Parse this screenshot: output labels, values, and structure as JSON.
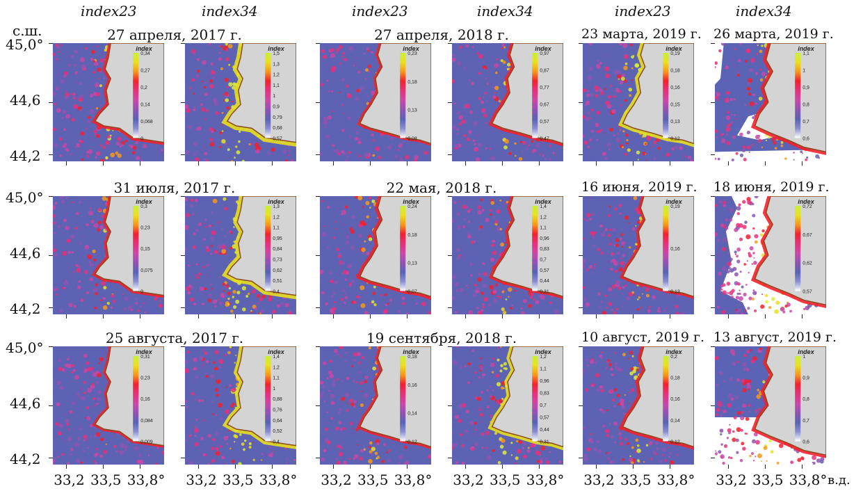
{
  "index_labels": {
    "index23": "index23",
    "index34": "index34"
  },
  "lat_axis": {
    "unit": "с.ш.",
    "ticks": [
      "45,0°",
      "44,6",
      "44,2"
    ]
  },
  "lon_axis": {
    "unit": "в.д.",
    "ticks": [
      "33,2",
      "33,5",
      "33,8°"
    ]
  },
  "rows": [
    {
      "dates": [
        {
          "label": "27 апреля, 2017 г.",
          "span": 2
        },
        {
          "label": "27 апреля, 2018 г.",
          "span": 2
        },
        {
          "label": "23 марта, 2019 г.",
          "span": 1
        },
        {
          "label": "26 марта, 2019 г.",
          "span": 1
        }
      ]
    },
    {
      "dates": [
        {
          "label": "31 июля, 2017 г.",
          "span": 2
        },
        {
          "label": "22 мая, 2018 г.",
          "span": 2
        },
        {
          "label": "16 июня, 2019 г.",
          "span": 1
        },
        {
          "label": "18 июня, 2019 г.",
          "span": 1
        }
      ]
    },
    {
      "dates": [
        {
          "label": "25 августа, 2017 г.",
          "span": 2
        },
        {
          "label": "19 сентября, 2018 г.",
          "span": 2
        },
        {
          "label": "10 август, 2019 г.",
          "span": 1
        },
        {
          "label": "13 август, 2019 г.",
          "span": 1
        }
      ]
    }
  ],
  "colorbar_title": "index",
  "panels": [
    {
      "id": "r1c1",
      "index": "index23",
      "ticks": [
        "0,34",
        "0,27",
        "0,2",
        "0,14",
        "0,068",
        "0"
      ],
      "hot": 0.35,
      "seed": 1,
      "coast": "a"
    },
    {
      "id": "r1c2",
      "index": "index34",
      "ticks": [
        "1,5",
        "1,3",
        "1,2",
        "1,1",
        "1",
        "0,9",
        "0,79",
        "0,68",
        "0,57"
      ],
      "hot": 0.8,
      "seed": 2,
      "coast": "a"
    },
    {
      "id": "r1c3",
      "index": "index23",
      "ticks": [
        "0,23",
        "0,18",
        "0,13",
        "0,08"
      ],
      "hot": 0.25,
      "seed": 3,
      "coast": "b"
    },
    {
      "id": "r1c4",
      "index": "index34",
      "ticks": [
        "0,97",
        "0,87",
        "0,77",
        "0,67",
        "0,57",
        "0,47"
      ],
      "hot": 0.4,
      "seed": 4,
      "coast": "b"
    },
    {
      "id": "r1c5",
      "index": "index23",
      "ticks": [
        "0,19",
        "0,18",
        "0,16",
        "0,15",
        "0,13",
        "0,12"
      ],
      "hot": 0.6,
      "seed": 5,
      "coast": "b"
    },
    {
      "id": "r1c6",
      "index": "index34",
      "ticks": [
        "1,1",
        "1",
        "0,9",
        "0,8",
        "0,7",
        "0,6"
      ],
      "hot": 0.5,
      "seed": 6,
      "coast": "c"
    },
    {
      "id": "r2c1",
      "index": "index23",
      "ticks": [
        "0,3",
        "0,23",
        "0,15",
        "0,075",
        "0"
      ],
      "hot": 0.3,
      "seed": 7,
      "coast": "a"
    },
    {
      "id": "r2c2",
      "index": "index34",
      "ticks": [
        "1,3",
        "1,2",
        "1,1",
        "0,95",
        "0,84",
        "0,73",
        "0,62",
        "0,51",
        "0,4"
      ],
      "hot": 0.7,
      "seed": 8,
      "coast": "a"
    },
    {
      "id": "r2c3",
      "index": "index23",
      "ticks": [
        "0,24",
        "0,18",
        "0,13",
        "0,07"
      ],
      "hot": 0.45,
      "seed": 9,
      "coast": "b"
    },
    {
      "id": "r2c4",
      "index": "index34",
      "ticks": [
        "1,4",
        "1,2",
        "1,1",
        "0,96",
        "0,83",
        "0,7",
        "0,57",
        "0,44",
        "0,31"
      ],
      "hot": 0.35,
      "seed": 10,
      "coast": "b"
    },
    {
      "id": "r2c5",
      "index": "index23",
      "ticks": [
        "0,19",
        "0,16",
        "0,13"
      ],
      "hot": 0.3,
      "seed": 11,
      "coast": "b"
    },
    {
      "id": "r2c6",
      "index": "index34",
      "ticks": [
        "0,72",
        "0,67",
        "0,62",
        "0,57"
      ],
      "hot": 0.5,
      "seed": 12,
      "coast": "c"
    },
    {
      "id": "r3c1",
      "index": "index23",
      "ticks": [
        "0,31",
        "0,23",
        "0,16",
        "0,084",
        "0,009"
      ],
      "hot": 0.2,
      "seed": 13,
      "coast": "a"
    },
    {
      "id": "r3c2",
      "index": "index34",
      "ticks": [
        "1,4",
        "1,2",
        "1,1",
        "1",
        "0,88",
        "0,76",
        "0,64",
        "0,52",
        "0,4"
      ],
      "hot": 0.6,
      "seed": 14,
      "coast": "a"
    },
    {
      "id": "r3c3",
      "index": "index23",
      "ticks": [
        "0,18",
        "0,16",
        "0,14",
        "0,12"
      ],
      "hot": 0.3,
      "seed": 15,
      "coast": "b"
    },
    {
      "id": "r3c4",
      "index": "index34",
      "ticks": [
        "1,2",
        "1,1",
        "0,96",
        "0,83",
        "0,7",
        "0,57",
        "0,44",
        "0,31"
      ],
      "hot": 0.55,
      "seed": 16,
      "coast": "b"
    },
    {
      "id": "r3c5",
      "index": "index23",
      "ticks": [
        "0,2",
        "0,18",
        "0,16",
        "0,14",
        "0,12"
      ],
      "hot": 0.45,
      "seed": 17,
      "coast": "b"
    },
    {
      "id": "r3c6",
      "index": "index34",
      "ticks": [
        "1",
        "0,9",
        "0,8",
        "0,7",
        "0,6"
      ],
      "hot": 0.45,
      "seed": 18,
      "coast": "c"
    }
  ]
}
